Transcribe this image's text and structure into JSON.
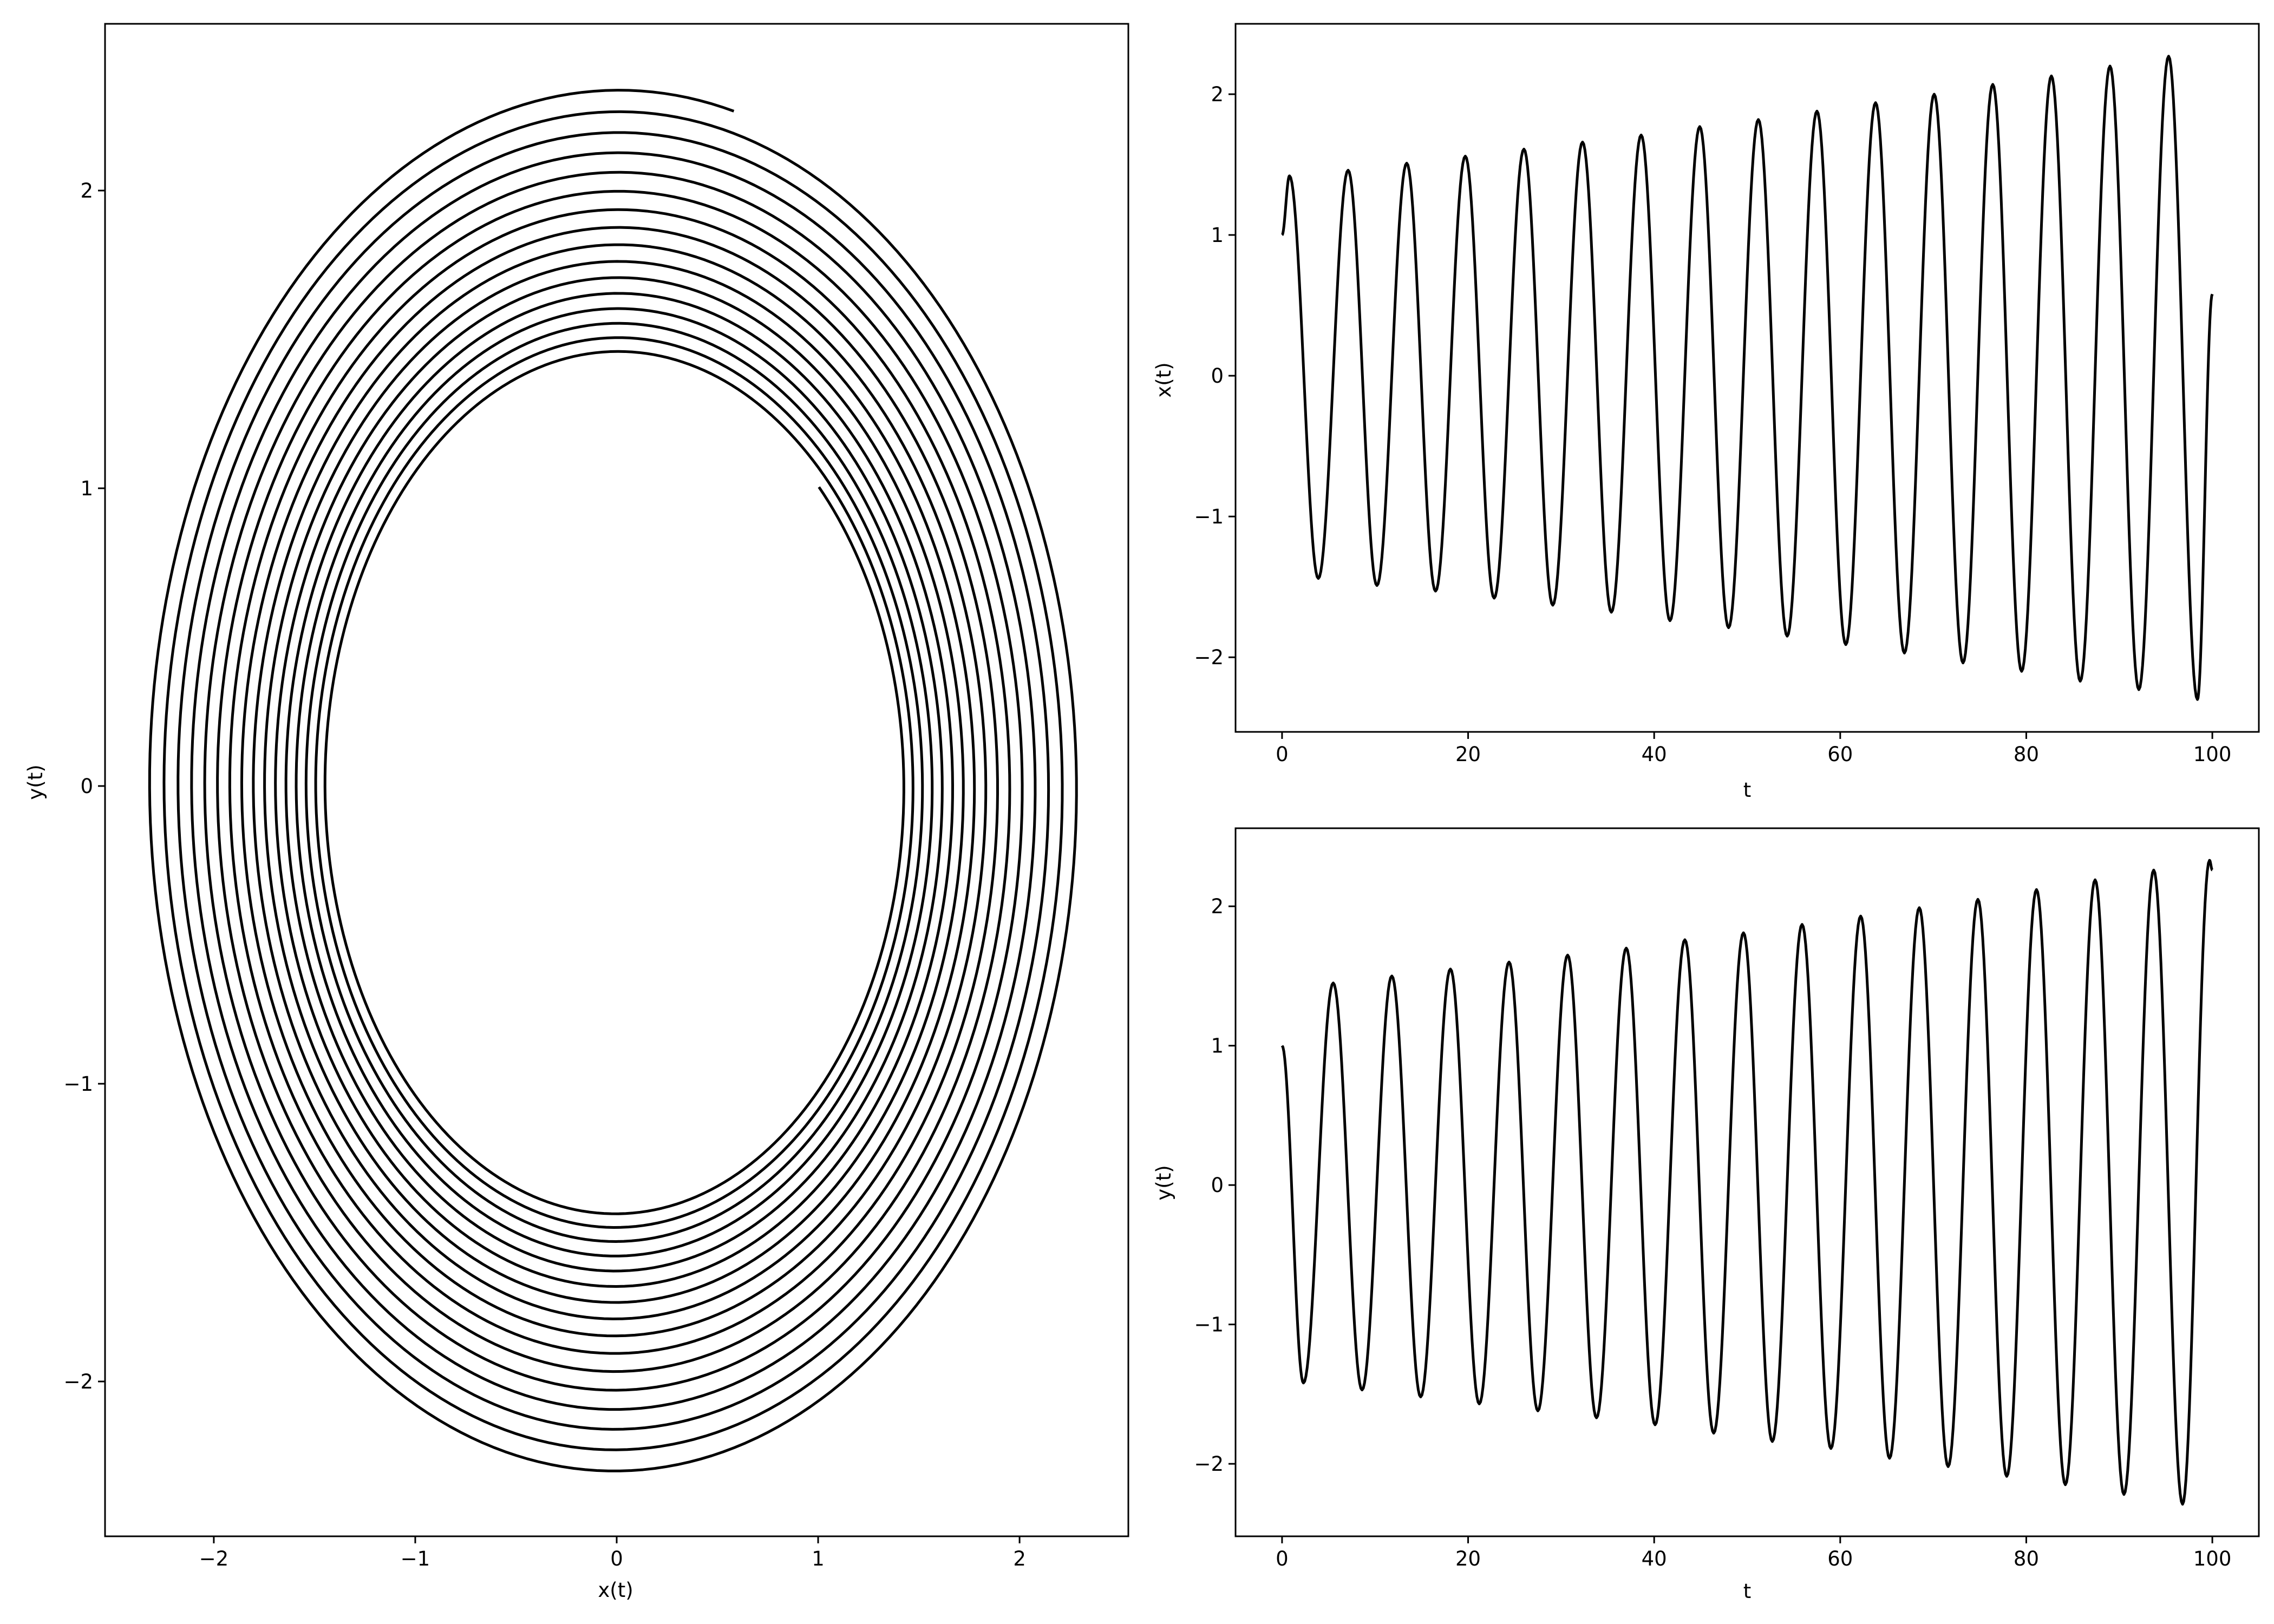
{
  "figure": {
    "panels": 3,
    "line_color": "#000000",
    "background": "#ffffff"
  },
  "chart_data": [
    {
      "id": "phase",
      "type": "line",
      "title": "",
      "xlabel": "x(t)",
      "ylabel": "y(t)",
      "xlim": [
        -2.54,
        2.54
      ],
      "ylim": [
        -2.52,
        2.56
      ],
      "xticks": [
        -2,
        -1,
        0,
        1,
        2
      ],
      "xtick_labels": [
        "−2",
        "−1",
        "0",
        "1",
        "2"
      ],
      "yticks": [
        -2,
        -1,
        0,
        1,
        2
      ],
      "ytick_labels": [
        "−2",
        "−1",
        "0",
        "1",
        "2"
      ],
      "grid": false,
      "legend": "none",
      "series": [
        {
          "description": "spiral trajectory y(t) vs x(t), t from 0 to 100",
          "start": {
            "x": 1.0,
            "y": 1.0
          },
          "end": {
            "x": 0.58,
            "y": 2.26
          },
          "initial_radius": 1.42,
          "final_radius": 2.34,
          "loops": 16
        }
      ]
    },
    {
      "id": "x_series",
      "type": "line",
      "title": "",
      "xlabel": "t",
      "ylabel": "x(t)",
      "xlim": [
        -5,
        105
      ],
      "ylim": [
        -2.53,
        2.5
      ],
      "xticks": [
        0,
        20,
        40,
        60,
        80,
        100
      ],
      "xtick_labels": [
        "0",
        "20",
        "40",
        "60",
        "80",
        "100"
      ],
      "yticks": [
        -2,
        -1,
        0,
        1,
        2
      ],
      "ytick_labels": [
        "−2",
        "−1",
        "0",
        "1",
        "2"
      ],
      "grid": false,
      "legend": "none",
      "series": [
        {
          "t_range": [
            0,
            100
          ],
          "x_at_t0": 1.0,
          "x_at_t100": 0.58,
          "peaks": [
            {
              "t": 0.8,
              "x": 1.42
            },
            {
              "t": 7.1,
              "x": 1.46
            },
            {
              "t": 13.4,
              "x": 1.51
            },
            {
              "t": 19.7,
              "x": 1.56
            },
            {
              "t": 26.0,
              "x": 1.61
            },
            {
              "t": 32.3,
              "x": 1.66
            },
            {
              "t": 38.6,
              "x": 1.71
            },
            {
              "t": 44.9,
              "x": 1.77
            },
            {
              "t": 51.2,
              "x": 1.82
            },
            {
              "t": 57.5,
              "x": 1.88
            },
            {
              "t": 63.8,
              "x": 1.94
            },
            {
              "t": 70.1,
              "x": 2.0
            },
            {
              "t": 76.4,
              "x": 2.07
            },
            {
              "t": 82.7,
              "x": 2.13
            },
            {
              "t": 89.0,
              "x": 2.2
            },
            {
              "t": 95.3,
              "x": 2.27
            }
          ],
          "troughs": [
            {
              "t": 3.9,
              "x": -1.44
            },
            {
              "t": 10.2,
              "x": -1.49
            },
            {
              "t": 16.5,
              "x": -1.53
            },
            {
              "t": 22.8,
              "x": -1.58
            },
            {
              "t": 29.1,
              "x": -1.63
            },
            {
              "t": 35.4,
              "x": -1.68
            },
            {
              "t": 41.7,
              "x": -1.74
            },
            {
              "t": 48.0,
              "x": -1.79
            },
            {
              "t": 54.3,
              "x": -1.85
            },
            {
              "t": 60.6,
              "x": -1.91
            },
            {
              "t": 66.9,
              "x": -1.97
            },
            {
              "t": 73.2,
              "x": -2.04
            },
            {
              "t": 79.5,
              "x": -2.1
            },
            {
              "t": 85.8,
              "x": -2.17
            },
            {
              "t": 92.1,
              "x": -2.23
            },
            {
              "t": 98.4,
              "x": -2.3
            }
          ]
        }
      ]
    },
    {
      "id": "y_series",
      "type": "line",
      "title": "",
      "xlabel": "t",
      "ylabel": "y(t)",
      "xlim": [
        -5,
        105
      ],
      "ylim": [
        -2.52,
        2.56
      ],
      "xticks": [
        0,
        20,
        40,
        60,
        80,
        100
      ],
      "xtick_labels": [
        "0",
        "20",
        "40",
        "60",
        "80",
        "100"
      ],
      "yticks": [
        -2,
        -1,
        0,
        1,
        2
      ],
      "ytick_labels": [
        "−2",
        "−1",
        "0",
        "1",
        "2"
      ],
      "grid": false,
      "legend": "none",
      "series": [
        {
          "t_range": [
            0,
            100
          ],
          "y_at_t0": 1.0,
          "y_at_t100": 2.26,
          "peaks": [
            {
              "t": 5.5,
              "y": 1.45
            },
            {
              "t": 11.8,
              "y": 1.5
            },
            {
              "t": 18.1,
              "y": 1.55
            },
            {
              "t": 24.4,
              "y": 1.6
            },
            {
              "t": 30.7,
              "y": 1.65
            },
            {
              "t": 37.0,
              "y": 1.7
            },
            {
              "t": 43.3,
              "y": 1.76
            },
            {
              "t": 49.6,
              "y": 1.81
            },
            {
              "t": 55.9,
              "y": 1.87
            },
            {
              "t": 62.2,
              "y": 1.93
            },
            {
              "t": 68.5,
              "y": 1.99
            },
            {
              "t": 74.8,
              "y": 2.05
            },
            {
              "t": 81.1,
              "y": 2.12
            },
            {
              "t": 87.4,
              "y": 2.19
            },
            {
              "t": 93.7,
              "y": 2.26
            },
            {
              "t": 99.7,
              "y": 2.33
            }
          ],
          "troughs": [
            {
              "t": 2.3,
              "y": -1.42
            },
            {
              "t": 8.6,
              "y": -1.47
            },
            {
              "t": 14.9,
              "y": -1.52
            },
            {
              "t": 21.2,
              "y": -1.57
            },
            {
              "t": 27.5,
              "y": -1.62
            },
            {
              "t": 33.8,
              "y": -1.67
            },
            {
              "t": 40.1,
              "y": -1.72
            },
            {
              "t": 46.4,
              "y": -1.78
            },
            {
              "t": 52.7,
              "y": -1.84
            },
            {
              "t": 59.0,
              "y": -1.89
            },
            {
              "t": 65.3,
              "y": -1.96
            },
            {
              "t": 71.6,
              "y": -2.02
            },
            {
              "t": 77.9,
              "y": -2.09
            },
            {
              "t": 84.2,
              "y": -2.15
            },
            {
              "t": 90.5,
              "y": -2.22
            },
            {
              "t": 96.8,
              "y": -2.29
            }
          ]
        }
      ]
    }
  ]
}
